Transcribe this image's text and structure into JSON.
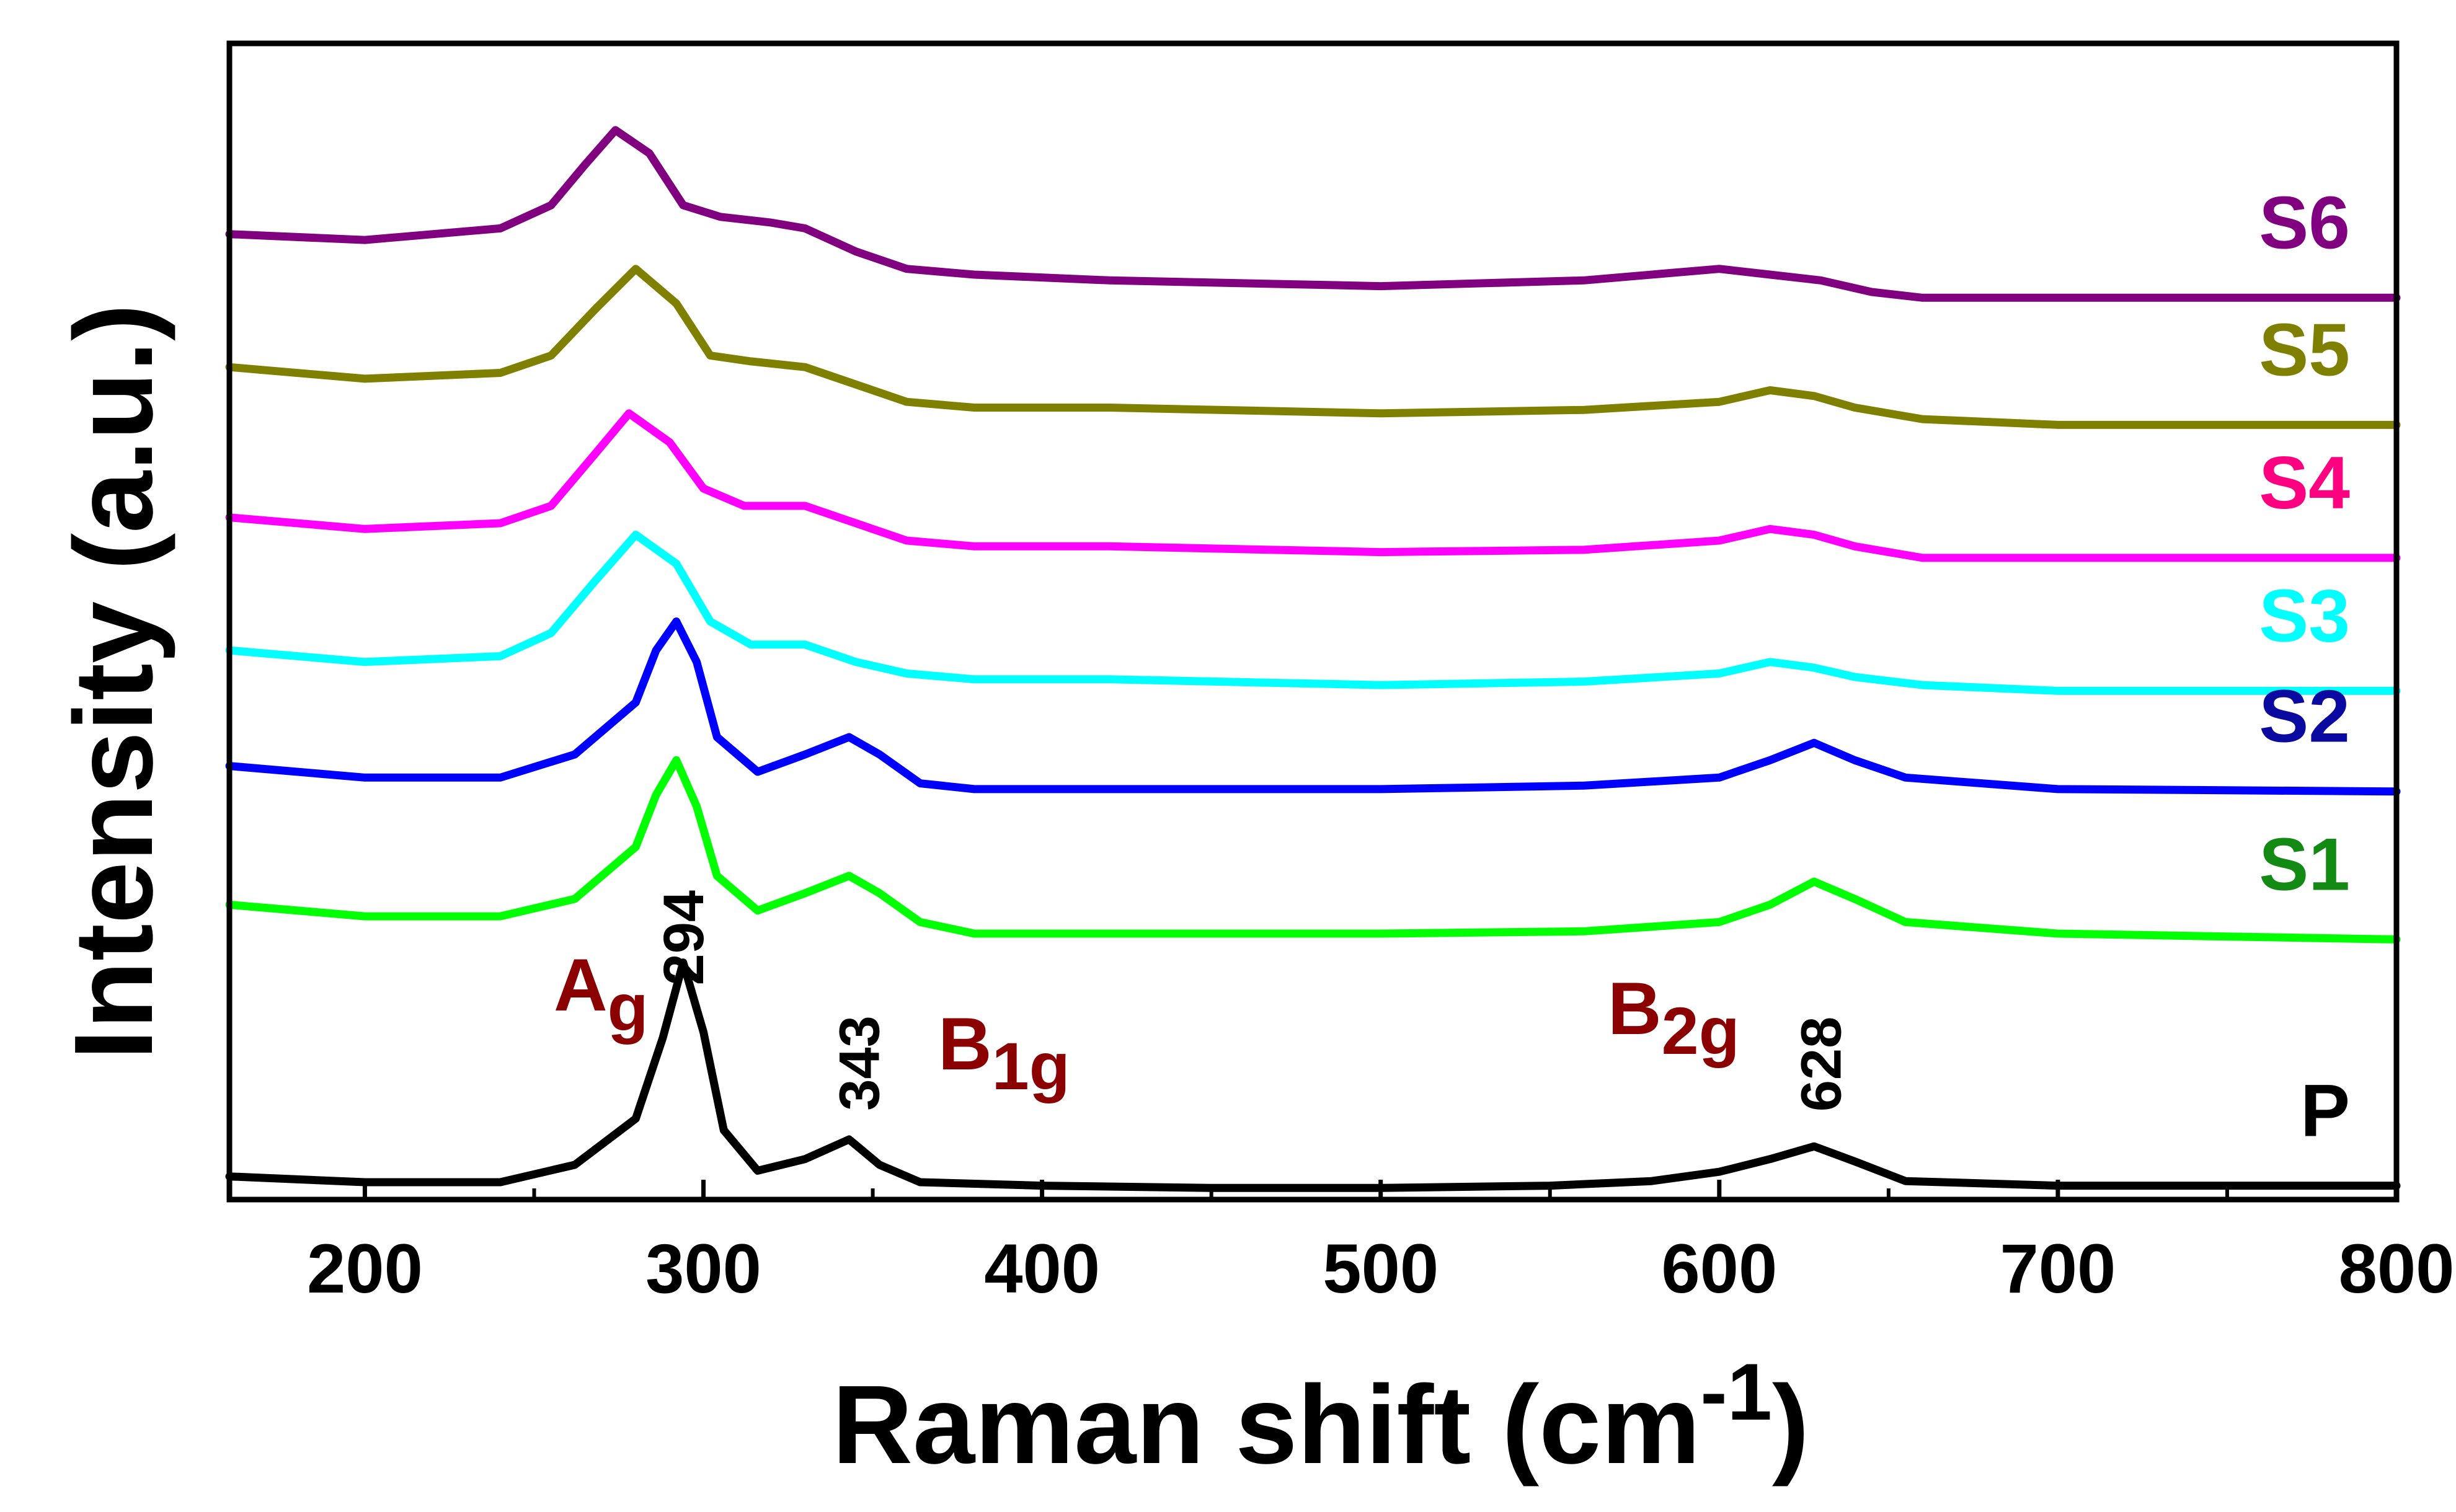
{
  "chart_data": {
    "type": "line",
    "title": "",
    "xlabel": "Raman shift (cm",
    "xlabel_sup": "-1",
    "xlabel_end": ")",
    "ylabel": "Intensity (a.u.)",
    "xlim": [
      160,
      800
    ],
    "ylim": [
      0,
      100
    ],
    "x_ticks": [
      200,
      300,
      400,
      500,
      600,
      700,
      800
    ],
    "x_tick_labels": [
      "200",
      "300",
      "400",
      "500",
      "600",
      "700",
      "800"
    ],
    "y_ticks_shown": false,
    "grid": false,
    "legend": "inline labels at right end of each trace",
    "series": [
      {
        "name": "P",
        "label": "P",
        "color": "#000000",
        "x": [
          160,
          200,
          240,
          262,
          280,
          288,
          294,
          300,
          306,
          316,
          330,
          343,
          352,
          364,
          400,
          450,
          500,
          550,
          580,
          600,
          615,
          628,
          640,
          655,
          700,
          800
        ],
        "y": [
          2.0,
          1.5,
          1.5,
          3.0,
          7.0,
          14.0,
          20.5,
          14.5,
          6.0,
          2.5,
          3.5,
          5.2,
          3.0,
          1.5,
          1.2,
          1.0,
          1.0,
          1.2,
          1.6,
          2.4,
          3.5,
          4.6,
          3.3,
          1.6,
          1.2,
          1.2
        ]
      },
      {
        "name": "S1",
        "label": "S1",
        "color": "#00ff00",
        "x": [
          160,
          200,
          240,
          262,
          280,
          286,
          292,
          298,
          304,
          316,
          330,
          343,
          352,
          364,
          380,
          420,
          500,
          560,
          600,
          615,
          628,
          640,
          655,
          700,
          800
        ],
        "y": [
          25.5,
          24.5,
          24.5,
          26.0,
          30.5,
          35.0,
          38.0,
          34.0,
          28.0,
          25.0,
          26.5,
          28.0,
          26.5,
          24.0,
          23.0,
          23.0,
          23.0,
          23.2,
          24.0,
          25.5,
          27.5,
          26.0,
          24.0,
          23.0,
          22.5
        ]
      },
      {
        "name": "S2",
        "label": "S2",
        "color": "#0000ff",
        "x": [
          160,
          200,
          240,
          262,
          280,
          286,
          292,
          298,
          304,
          316,
          330,
          343,
          352,
          364,
          380,
          420,
          500,
          560,
          600,
          615,
          628,
          640,
          655,
          700,
          800
        ],
        "y": [
          37.5,
          36.5,
          36.5,
          38.5,
          43.0,
          47.5,
          50.0,
          46.5,
          40.0,
          37.0,
          38.5,
          40.0,
          38.5,
          36.0,
          35.5,
          35.5,
          35.5,
          35.8,
          36.5,
          38.0,
          39.5,
          38.0,
          36.5,
          35.5,
          35.3
        ]
      },
      {
        "name": "S3",
        "label": "S3",
        "color": "#00ffff",
        "x": [
          160,
          200,
          240,
          255,
          268,
          280,
          292,
          302,
          314,
          330,
          345,
          360,
          380,
          420,
          500,
          560,
          600,
          615,
          628,
          640,
          660,
          700,
          800
        ],
        "y": [
          47.5,
          46.5,
          47.0,
          49.0,
          53.5,
          57.5,
          55.0,
          50.0,
          48.0,
          48.0,
          46.5,
          45.5,
          45.0,
          45.0,
          44.5,
          44.8,
          45.5,
          46.5,
          46.0,
          45.2,
          44.5,
          44.0,
          44.0
        ]
      },
      {
        "name": "S4",
        "label": "S4",
        "color": "#ff00ff",
        "x": [
          160,
          200,
          240,
          255,
          268,
          278,
          290,
          300,
          312,
          330,
          345,
          360,
          380,
          420,
          500,
          560,
          600,
          615,
          628,
          640,
          660,
          700,
          800
        ],
        "y": [
          59.0,
          58.0,
          58.5,
          60.0,
          64.5,
          68.0,
          65.5,
          61.5,
          60.0,
          60.0,
          58.5,
          57.0,
          56.5,
          56.5,
          56.0,
          56.2,
          57.0,
          58.0,
          57.5,
          56.5,
          55.5,
          55.5,
          55.5
        ]
      },
      {
        "name": "S5",
        "label": "S5",
        "color": "#808000",
        "x": [
          160,
          200,
          240,
          255,
          268,
          280,
          292,
          302,
          314,
          330,
          345,
          360,
          380,
          420,
          500,
          560,
          600,
          615,
          628,
          640,
          660,
          700,
          800
        ],
        "y": [
          72.0,
          71.0,
          71.5,
          73.0,
          77.0,
          80.5,
          77.5,
          73.0,
          72.5,
          72.0,
          70.5,
          69.0,
          68.5,
          68.5,
          68.0,
          68.3,
          69.0,
          70.0,
          69.5,
          68.5,
          67.5,
          67.0,
          67.0
        ]
      },
      {
        "name": "S6",
        "label": "S6",
        "color": "#800080",
        "x": [
          160,
          200,
          240,
          255,
          265,
          274,
          284,
          294,
          305,
          320,
          330,
          345,
          360,
          380,
          420,
          500,
          560,
          600,
          615,
          630,
          645,
          660,
          700,
          800
        ],
        "y": [
          83.5,
          83.0,
          84.0,
          86.0,
          89.5,
          92.5,
          90.5,
          86.0,
          85.0,
          84.5,
          84.0,
          82.0,
          80.5,
          80.0,
          79.5,
          79.0,
          79.5,
          80.5,
          80.0,
          79.5,
          78.5,
          78.0,
          78.0,
          78.0
        ]
      }
    ],
    "peak_labels": [
      {
        "text": "294",
        "x": 294
      },
      {
        "text": "343",
        "x": 346
      },
      {
        "text": "628",
        "x": 630
      }
    ],
    "mode_labels": [
      {
        "base": "A",
        "sub": "g"
      },
      {
        "base": "B",
        "sub": "1g"
      },
      {
        "base": "B",
        "sub": "2g"
      }
    ],
    "mode_color": "#8b0000"
  }
}
